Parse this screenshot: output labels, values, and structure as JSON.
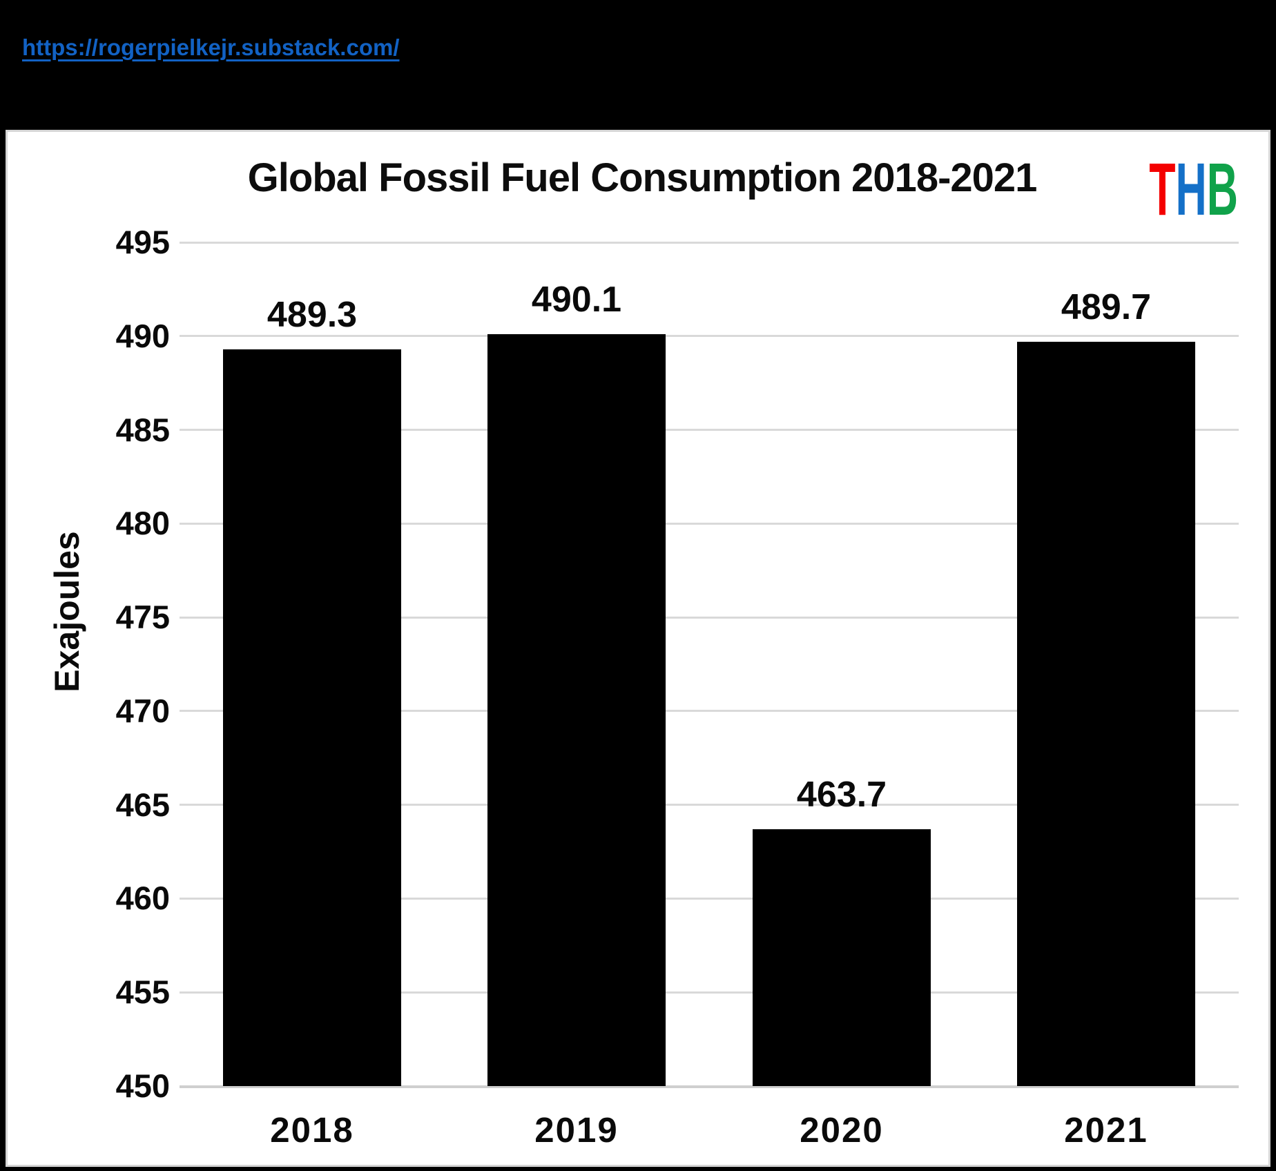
{
  "page": {
    "link": {
      "text": "https://rogerpielkejr.substack.com/",
      "href": "https://rogerpielkejr.substack.com/",
      "color": "#1262C4"
    }
  },
  "logo": {
    "name": "THB",
    "letters": [
      {
        "char": "T",
        "color": "#F40000"
      },
      {
        "char": "H",
        "color": "#1470C8"
      },
      {
        "char": "B",
        "color": "#10A24A"
      }
    ]
  },
  "chart_data": {
    "type": "bar",
    "title": "Global Fossil Fuel Consumption 2018-2021",
    "categories": [
      "2018",
      "2019",
      "2020",
      "2021"
    ],
    "values": [
      489.3,
      490.1,
      463.7,
      489.7
    ],
    "data_labels": [
      "489.3",
      "490.1",
      "463.7",
      "489.7"
    ],
    "xlabel": "",
    "ylabel": "Exajoules",
    "ylim": [
      450,
      495
    ],
    "ytick_step": 5,
    "yticks": [
      450,
      455,
      460,
      465,
      470,
      475,
      480,
      485,
      490,
      495
    ],
    "bar_color": "#000000",
    "grid": true,
    "gridline_color": "#D9D9D9",
    "background": "#FFFFFF",
    "page_background": "#000000",
    "legend_position": "none"
  }
}
